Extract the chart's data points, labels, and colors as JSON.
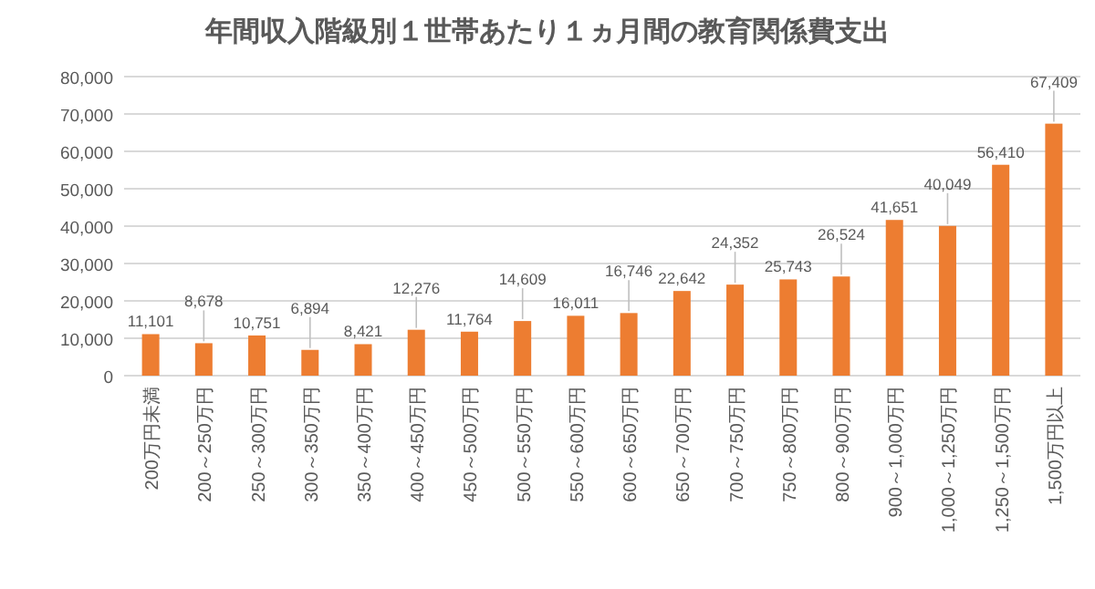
{
  "chart_data": {
    "type": "bar",
    "title": "年間収入階級別１世帯あたり１ヵ月間の教育関係費支出",
    "categories": [
      "200万円未満",
      "200～250万円",
      "250～300万円",
      "300～350万円",
      "350～400万円",
      "400～450万円",
      "450～500万円",
      "500～550万円",
      "550～600万円",
      "600～650万円",
      "650～700万円",
      "700～750万円",
      "750～800万円",
      "800～900万円",
      "900～1,000万円",
      "1,000～1,250万円",
      "1,250～1,500万円",
      "1,500万円以上"
    ],
    "values": [
      11101,
      8678,
      10751,
      6894,
      8421,
      12276,
      11764,
      14609,
      16011,
      16746,
      22642,
      24352,
      25743,
      26524,
      41651,
      40049,
      56410,
      67409
    ],
    "color": "#ed7d31",
    "ylim": [
      0,
      80000
    ],
    "yticks": [
      0,
      {
        "value": 10000,
        "label": "10,000"
      },
      {
        "value": 20000,
        "label": "20,000"
      },
      {
        "value": 30000,
        "label": "30,000"
      },
      {
        "value": 40000,
        "label": "40,000"
      },
      {
        "value": 50000,
        "label": "50,000"
      },
      {
        "value": 60000,
        "label": "60,000"
      },
      {
        "value": 70000,
        "label": "70,000"
      },
      {
        "value": 80000,
        "label": "80,000"
      }
    ],
    "value_labels": [
      "11,101",
      "8,678",
      "10,751",
      "6,894",
      "8,421",
      "12,276",
      "11,764",
      "14,609",
      "16,011",
      "16,746",
      "22,642",
      "24,352",
      "25,743",
      "26,524",
      "41,651",
      "40,049",
      "56,410",
      "67,409"
    ],
    "grid": "y"
  }
}
